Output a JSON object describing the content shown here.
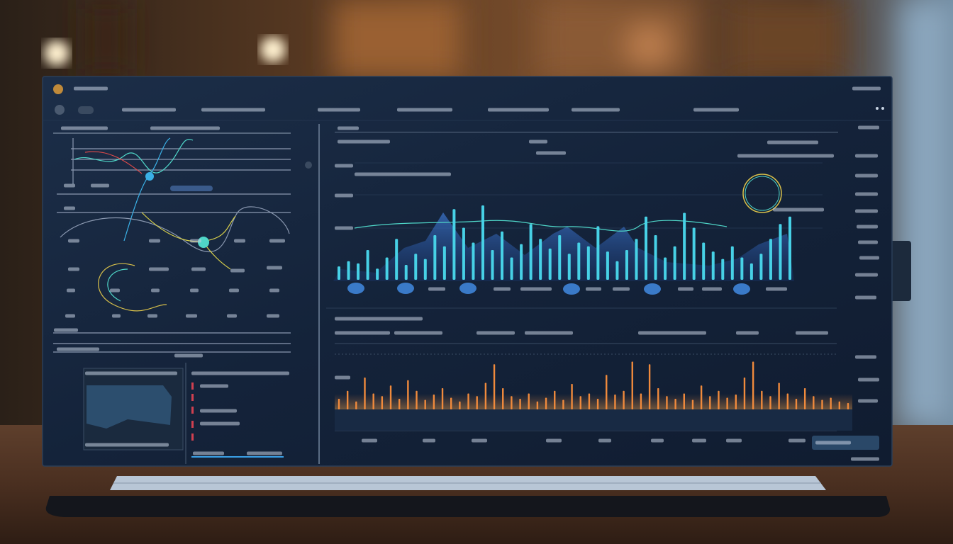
{
  "chart_data": [
    {
      "type": "bar",
      "color": "#47d1e6",
      "ylim": [
        0,
        100
      ],
      "values": [
        18,
        25,
        22,
        40,
        15,
        30,
        55,
        20,
        35,
        28,
        60,
        45,
        95,
        70,
        50,
        100,
        40,
        65,
        30,
        48,
        75,
        55,
        42,
        60,
        35,
        50,
        45,
        72,
        38,
        25,
        40,
        55,
        85,
        60,
        30,
        45,
        90,
        70,
        50,
        38,
        28,
        45,
        30,
        22,
        35,
        55,
        75,
        85
      ]
    },
    {
      "type": "bar",
      "color": "#f08a3c",
      "ylim": [
        0,
        100
      ],
      "values": [
        20,
        35,
        15,
        60,
        30,
        25,
        45,
        20,
        55,
        35,
        18,
        28,
        40,
        22,
        15,
        30,
        25,
        50,
        85,
        40,
        25,
        20,
        30,
        15,
        22,
        35,
        18,
        48,
        25,
        30,
        20,
        65,
        28,
        35,
        90,
        30,
        85,
        40,
        25,
        20,
        30,
        18,
        45,
        25,
        35,
        22,
        28,
        60,
        90,
        35,
        25,
        50,
        30,
        20,
        40,
        25,
        18,
        22,
        15,
        12
      ]
    }
  ]
}
